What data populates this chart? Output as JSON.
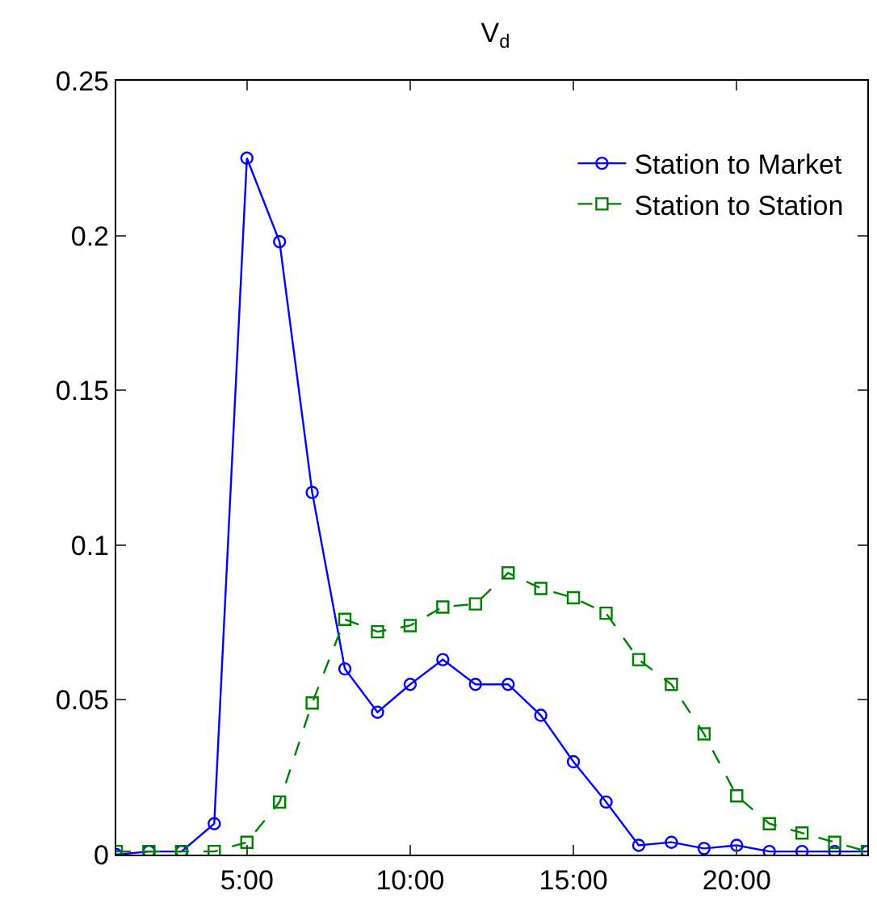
{
  "chart_data": {
    "type": "line",
    "title": "V$_{d}$",
    "x": [
      1,
      2,
      3,
      4,
      5,
      6,
      7,
      8,
      9,
      10,
      11,
      12,
      13,
      14,
      15,
      16,
      17,
      18,
      19,
      20,
      21,
      22,
      23,
      24
    ],
    "series": [
      {
        "name": "Station to Market",
        "color": "#0000ff",
        "marker": "circle",
        "line_style": "solid",
        "values": [
          0,
          0.001,
          0.001,
          0.01,
          0.225,
          0.198,
          0.117,
          0.06,
          0.046,
          0.055,
          0.063,
          0.055,
          0.055,
          0.045,
          0.03,
          0.017,
          0.003,
          0.004,
          0.002,
          0.003,
          0.001,
          0.001,
          0.001,
          0.001
        ]
      },
      {
        "name": "Station to Station",
        "color": "#008000",
        "marker": "square",
        "line_style": "dashed",
        "values": [
          0.001,
          0.001,
          0.001,
          0.001,
          0.004,
          0.017,
          0.049,
          0.076,
          0.072,
          0.074,
          0.08,
          0.081,
          0.091,
          0.086,
          0.083,
          0.078,
          0.063,
          0.055,
          0.039,
          0.019,
          0.01,
          0.007,
          0.004,
          0.001
        ]
      }
    ],
    "xlim": [
      1,
      24
    ],
    "xticks": [
      {
        "value": 5,
        "label": "5:00"
      },
      {
        "value": 10,
        "label": "10:00"
      },
      {
        "value": 15,
        "label": "15:00"
      },
      {
        "value": 20,
        "label": "20:00"
      }
    ],
    "ylim": [
      0,
      0.25
    ],
    "yticks": [
      0,
      0.05,
      0.1,
      0.15,
      0.2,
      0.25
    ],
    "grid": false,
    "legend": "top right"
  }
}
